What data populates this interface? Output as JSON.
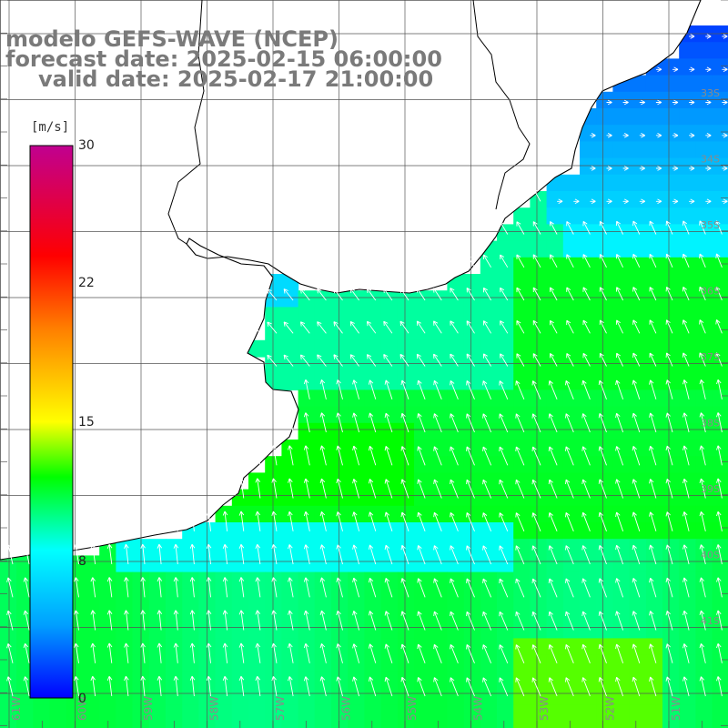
{
  "title": {
    "model": "modelo GEFS-WAVE (NCEP)",
    "forecast": "forecast date: 2025-02-15 06:00:00",
    "valid": "valid date: 2025-02-17 21:00:00"
  },
  "colorbar": {
    "unit": "[m/s]",
    "min": 0,
    "max": 30,
    "ticks": [
      "30",
      "22",
      "15",
      "8",
      "0"
    ],
    "tick_values": [
      30,
      22,
      15,
      8,
      0
    ],
    "colors": [
      "#0000ff",
      "#00a0ff",
      "#00ffff",
      "#00ff00",
      "#ffff00",
      "#ff8000",
      "#ff0000",
      "#c00090"
    ]
  },
  "map": {
    "lon_range": [
      -62,
      -51
    ],
    "lat_range": [
      -42,
      -31
    ],
    "lon_labels": [
      "61W",
      "60W",
      "59W",
      "58W",
      "57W",
      "56W",
      "55W",
      "54W",
      "53W",
      "52W",
      "51W"
    ],
    "lat_labels": [
      "33S",
      "34S",
      "35S",
      "36S",
      "37S",
      "38S",
      "39S",
      "40S",
      "41S"
    ],
    "field": "wind speed at 10 m with direction vectors",
    "land_color": "#ffffff",
    "coastline_color": "#000000",
    "grid_color": "#555555"
  }
}
